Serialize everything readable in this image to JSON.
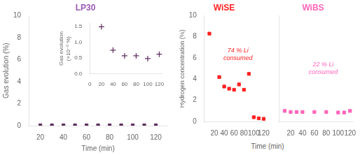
{
  "chart_data": [
    {
      "type": "scatter",
      "title": "LP30",
      "title_color": "#9b59b6",
      "xlabel": "Time (min)",
      "ylabel": "Gas evolution (%)",
      "x": [
        20,
        30,
        40,
        50,
        60,
        70,
        80,
        90,
        100,
        110,
        120
      ],
      "values": [
        0.03,
        0.03,
        0.03,
        0.03,
        0.03,
        0.03,
        0.03,
        0.03,
        0.03,
        0.03,
        0.03
      ],
      "color": "#5c2d5c",
      "marker": "square",
      "xlim": [
        10,
        130
      ],
      "ylim": [
        0,
        10
      ],
      "xticks": [
        20,
        40,
        60,
        80,
        100,
        120
      ],
      "yticks": [
        0,
        2,
        4,
        6,
        8,
        10
      ],
      "grid": false
    },
    {
      "type": "scatter",
      "ylabel": "Gas evolution\n(×10⁻² %)",
      "x": [
        20,
        40,
        60,
        80,
        100,
        120
      ],
      "values": [
        1.5,
        0.75,
        0.57,
        0.57,
        0.48,
        0.62
      ],
      "color": "#5c2d5c",
      "marker": "plus",
      "xlim": [
        0,
        125
      ],
      "ylim": [
        0.0,
        1.6
      ],
      "xticks": [
        0,
        20,
        40,
        60,
        80,
        100,
        120
      ],
      "yticks": [
        {
          "value": 0,
          "label": "0.0"
        },
        0.5,
        {
          "value": 1,
          "label": "1.0"
        },
        1.5
      ],
      "grid": false
    },
    {
      "type": "scatter",
      "title": "WiSE",
      "xlabel": "Time (min)",
      "ylabel": "Hydrogen concentration (%)",
      "x": [
        10,
        30,
        40,
        50,
        60,
        70,
        80,
        90,
        100,
        110,
        120
      ],
      "values": [
        8.3,
        4.2,
        3.3,
        3.1,
        3.0,
        3.5,
        3.0,
        4.5,
        0.4,
        0.3,
        0.25
      ],
      "color": "#ff2222",
      "marker": "square",
      "xlim": [
        0,
        125
      ],
      "ylim": [
        0,
        10
      ],
      "xticks": [
        20,
        40,
        60,
        80,
        100,
        120
      ],
      "yticks": [
        0,
        2,
        4,
        6,
        8,
        10
      ],
      "grid": false,
      "annotations": [
        {
          "text": "74 % Li\nconsumed",
          "x": 68,
          "y": 5.8,
          "color": "#ff2222"
        }
      ]
    },
    {
      "type": "scatter",
      "title": "WiBS",
      "x": [
        10,
        20,
        30,
        40,
        60,
        80,
        100,
        110,
        120
      ],
      "values": [
        1.0,
        0.9,
        0.9,
        0.9,
        0.9,
        0.9,
        0.85,
        0.85,
        1.0
      ],
      "color": "#ff66bb",
      "marker": "square",
      "xlim": [
        0,
        125
      ],
      "ylim": [
        0,
        10
      ],
      "xticks": [
        20,
        40,
        60,
        80,
        100,
        120
      ],
      "yticks": [],
      "tick_labels": "x",
      "grid": false,
      "annotations": [
        {
          "text": "22 % Li\nconsumed",
          "x": 75,
          "y": 4.5,
          "color": "#ff66bb"
        }
      ]
    }
  ]
}
